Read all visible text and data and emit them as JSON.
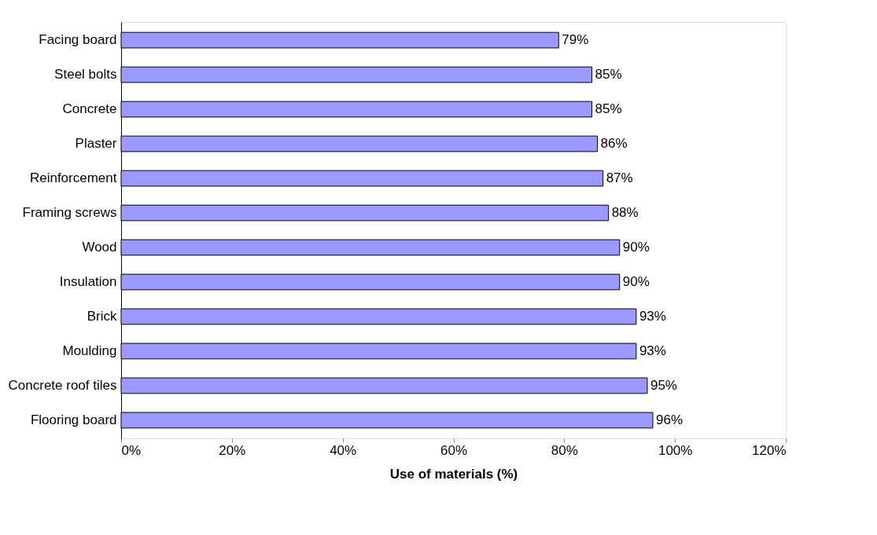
{
  "chart_data": {
    "type": "bar",
    "orientation": "horizontal",
    "xlabel": "Use of materials (%)",
    "categories": [
      "Facing board",
      "Steel bolts",
      "Concrete",
      "Plaster",
      "Reinforcement",
      "Framing screws",
      "Wood",
      "Insulation",
      "Brick",
      "Moulding",
      "Concrete roof tiles",
      "Flooring board"
    ],
    "values": [
      79,
      85,
      85,
      86,
      87,
      88,
      90,
      90,
      93,
      93,
      95,
      96
    ],
    "value_labels": [
      "79%",
      "85%",
      "85%",
      "86%",
      "87%",
      "88%",
      "90%",
      "90%",
      "93%",
      "93%",
      "95%",
      "96%"
    ],
    "color": "#9999ff",
    "xlim": [
      0,
      120
    ],
    "xticks": [
      {
        "value": 0,
        "label": "0%"
      },
      {
        "value": 20,
        "label": "20%"
      },
      {
        "value": 40,
        "label": "40%"
      },
      {
        "value": 60,
        "label": "60%"
      },
      {
        "value": 80,
        "label": "80%"
      },
      {
        "value": 100,
        "label": "100%"
      },
      {
        "value": 120,
        "label": "120%"
      }
    ],
    "grid": false
  }
}
